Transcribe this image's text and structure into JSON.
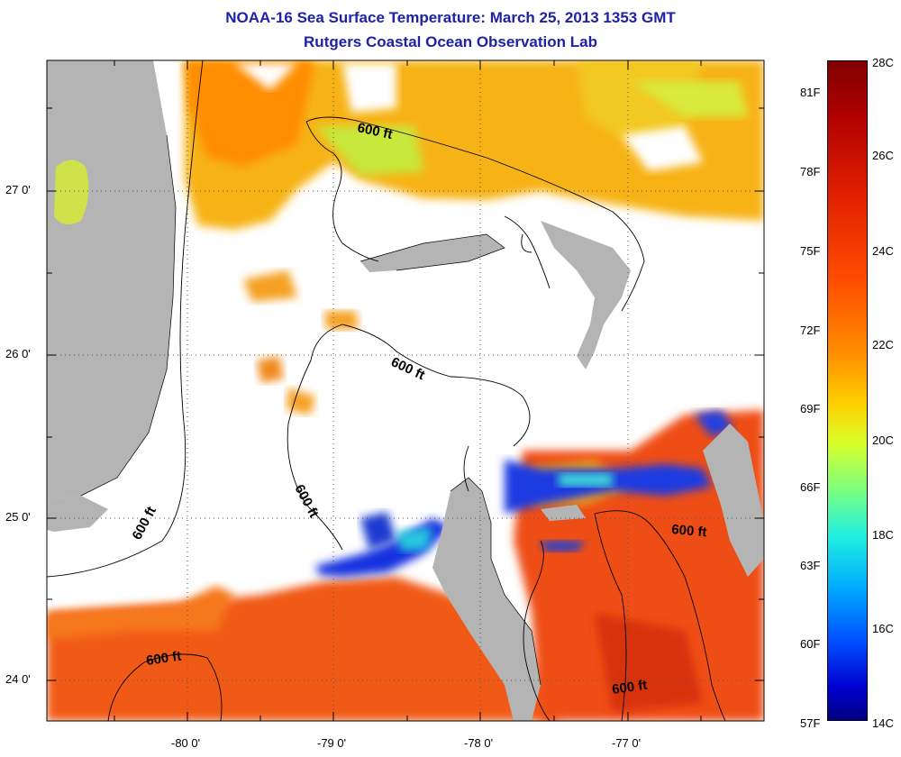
{
  "title_line1": "NOAA-16 Sea Surface Temperature:  March 25, 2013 1353 GMT",
  "title_line2": "Rutgers Coastal Ocean Observation Lab",
  "lon_labels": [
    "-80 0'",
    "-79 0'",
    "-78 0'",
    "-77 0'"
  ],
  "lat_labels": [
    "27 0'",
    "26 0'",
    "25 0'",
    "24 0'"
  ],
  "contour_label": "600 ft",
  "colorbar": {
    "celsius": [
      "28C",
      "26C",
      "24C",
      "22C",
      "20C",
      "18C",
      "16C",
      "14C"
    ],
    "fahrenheit": [
      "81F",
      "78F",
      "75F",
      "72F",
      "69F",
      "66F",
      "63F",
      "60F",
      "57F"
    ]
  },
  "colors": {
    "title": "#1e22a8",
    "land": "#b4b4b4",
    "cloud": "#ffffff"
  }
}
